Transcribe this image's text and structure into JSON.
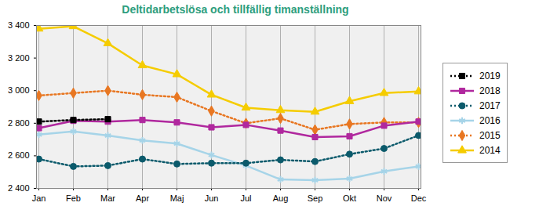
{
  "chart_data": {
    "type": "line",
    "title": "Deltidarbetslösa och tillfällig timanställning",
    "categories": [
      "Jan",
      "Feb",
      "Mar",
      "Apr",
      "Maj",
      "Jun",
      "Jul",
      "Aug",
      "Sep",
      "Okt",
      "Nov",
      "Dec"
    ],
    "series": [
      {
        "name": "2019",
        "color": "#000000",
        "marker": "square",
        "line_style": "dotted",
        "values": [
          2810,
          2820,
          2825,
          null,
          null,
          null,
          null,
          null,
          null,
          null,
          null,
          null
        ]
      },
      {
        "name": "2018",
        "color": "#b0289e",
        "marker": "square",
        "line_style": "solid",
        "values": [
          2770,
          2815,
          2810,
          2820,
          2805,
          2775,
          2790,
          2755,
          2715,
          2720,
          2785,
          2810
        ]
      },
      {
        "name": "2017",
        "color": "#0b5a6b",
        "marker": "circle",
        "line_style": "dotted",
        "values": [
          2580,
          2535,
          2540,
          2580,
          2550,
          2555,
          2555,
          2575,
          2565,
          2610,
          2645,
          2725
        ]
      },
      {
        "name": "2016",
        "color": "#a6d4e8",
        "marker": "asterisk",
        "line_style": "solid",
        "values": [
          2730,
          2750,
          2725,
          2695,
          2675,
          2605,
          2540,
          2455,
          2450,
          2460,
          2505,
          2535
        ]
      },
      {
        "name": "2015",
        "color": "#e87722",
        "marker": "diamond",
        "line_style": "dotted",
        "values": [
          2970,
          2985,
          3000,
          2975,
          2960,
          2875,
          2800,
          2830,
          2760,
          2795,
          2805,
          2805
        ]
      },
      {
        "name": "2014",
        "color": "#f5cc00",
        "marker": "triangle",
        "line_style": "solid",
        "values": [
          3380,
          3395,
          3290,
          3155,
          3100,
          2975,
          2895,
          2880,
          2870,
          2935,
          2985,
          2995
        ]
      }
    ],
    "ylim": [
      2400,
      3400
    ],
    "yticks": [
      {
        "value": 2400,
        "label": "2 400"
      },
      {
        "value": 2600,
        "label": "2 600"
      },
      {
        "value": 2800,
        "label": "2 800"
      },
      {
        "value": 3000,
        "label": "3 000"
      },
      {
        "value": 3200,
        "label": "3 200"
      },
      {
        "value": 3400,
        "label": "3 400"
      }
    ],
    "grid": true,
    "legend": "right"
  }
}
